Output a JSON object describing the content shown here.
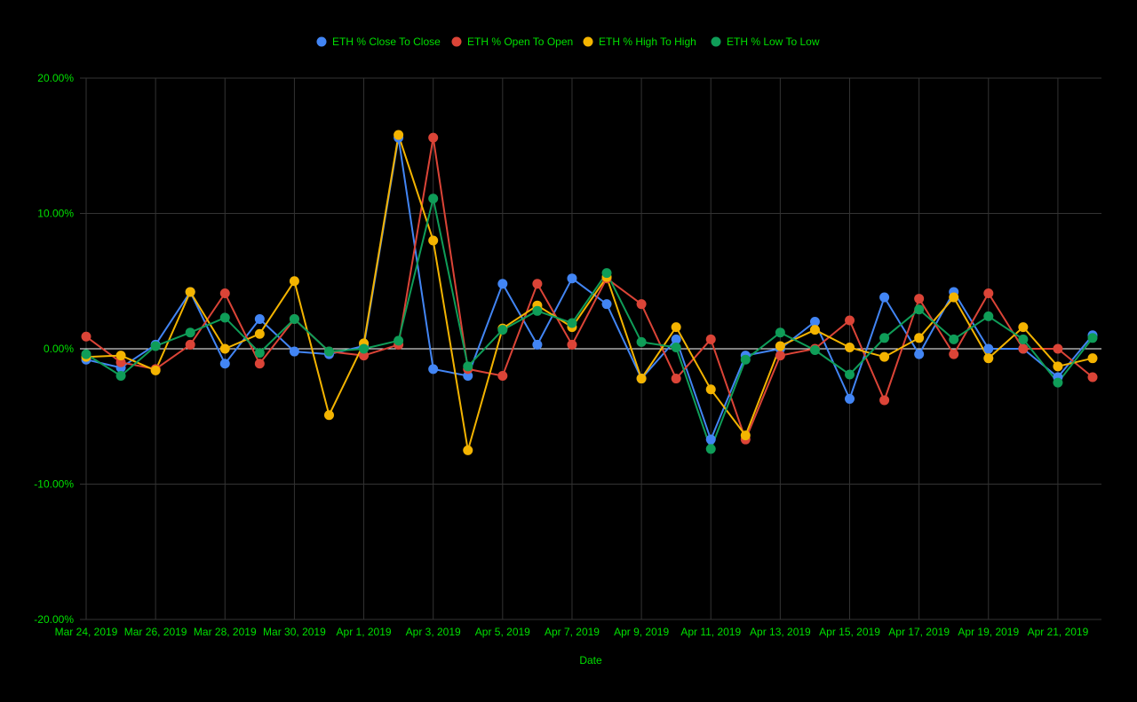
{
  "chart_data": {
    "type": "line",
    "xlabel": "Date",
    "ylabel": "",
    "ylim": [
      -20,
      20
    ],
    "y_ticks": [
      20,
      10,
      0,
      -10,
      -20
    ],
    "y_tick_labels": [
      "20.00%",
      "10.00%",
      "0.00%",
      "-10.00%",
      "-20.00%"
    ],
    "x": [
      "Mar 24, 2019",
      "Mar 25, 2019",
      "Mar 26, 2019",
      "Mar 27, 2019",
      "Mar 28, 2019",
      "Mar 29, 2019",
      "Mar 30, 2019",
      "Mar 31, 2019",
      "Apr 1, 2019",
      "Apr 2, 2019",
      "Apr 3, 2019",
      "Apr 4, 2019",
      "Apr 5, 2019",
      "Apr 6, 2019",
      "Apr 7, 2019",
      "Apr 8, 2019",
      "Apr 9, 2019",
      "Apr 10, 2019",
      "Apr 11, 2019",
      "Apr 12, 2019",
      "Apr 13, 2019",
      "Apr 14, 2019",
      "Apr 15, 2019",
      "Apr 16, 2019",
      "Apr 17, 2019",
      "Apr 18, 2019",
      "Apr 19, 2019",
      "Apr 20, 2019",
      "Apr 21, 2019",
      "Apr 22, 2019"
    ],
    "x_tick_labels": [
      "Mar 24, 2019",
      "Mar 26, 2019",
      "Mar 28, 2019",
      "Mar 30, 2019",
      "Apr 1, 2019",
      "Apr 3, 2019",
      "Apr 5, 2019",
      "Apr 7, 2019",
      "Apr 9, 2019",
      "Apr 11, 2019",
      "Apr 13, 2019",
      "Apr 15, 2019",
      "Apr 17, 2019",
      "Apr 19, 2019",
      "Apr 21, 2019"
    ],
    "grid": true,
    "legend_position": "top",
    "series": [
      {
        "name": "ETH % Close To Close",
        "color": "#4285F4",
        "values": [
          -0.8,
          -1.4,
          0.3,
          4.2,
          -1.1,
          2.2,
          -0.2,
          -0.4,
          0.2,
          15.6,
          -1.5,
          -2.0,
          4.8,
          0.3,
          5.2,
          3.3,
          -2.2,
          0.7,
          -6.7,
          -0.5,
          0.0,
          2.0,
          -3.7,
          3.8,
          -0.4,
          4.2,
          0.0,
          0.0,
          -2.1,
          1.0
        ]
      },
      {
        "name": "ETH % Open To Open",
        "color": "#DB4437",
        "values": [
          0.9,
          -1.0,
          -1.5,
          0.3,
          4.1,
          -1.1,
          2.2,
          -0.2,
          -0.5,
          0.3,
          15.6,
          -1.5,
          -2.0,
          4.8,
          0.3,
          5.2,
          3.3,
          -2.2,
          0.7,
          -6.7,
          -0.5,
          0.0,
          2.1,
          -3.8,
          3.7,
          -0.4,
          4.1,
          0.0,
          0.0,
          -2.1
        ]
      },
      {
        "name": "ETH % High To High",
        "color": "#F4B400",
        "values": [
          -0.6,
          -0.5,
          -1.6,
          4.2,
          0.0,
          1.1,
          5.0,
          -4.9,
          0.4,
          15.8,
          8.0,
          -7.5,
          1.5,
          3.2,
          1.6,
          5.3,
          -2.2,
          1.6,
          -3.0,
          -6.4,
          0.2,
          1.4,
          0.1,
          -0.6,
          0.8,
          3.8,
          -0.7,
          1.6,
          -1.3,
          -0.7
        ]
      },
      {
        "name": "ETH % Low To Low",
        "color": "#0F9D58",
        "values": [
          -0.4,
          -2.0,
          0.2,
          1.2,
          2.3,
          -0.3,
          2.2,
          -0.2,
          0.0,
          0.6,
          11.1,
          -1.3,
          1.4,
          2.8,
          1.9,
          5.6,
          0.5,
          0.1,
          -7.4,
          -0.8,
          1.2,
          -0.1,
          -1.9,
          0.8,
          2.9,
          0.7,
          2.4,
          0.7,
          -2.5,
          0.8
        ]
      }
    ]
  },
  "colors": {
    "background": "#000000",
    "grid": "#333333",
    "zero_line": "#ffffff",
    "text": "#00e000"
  }
}
